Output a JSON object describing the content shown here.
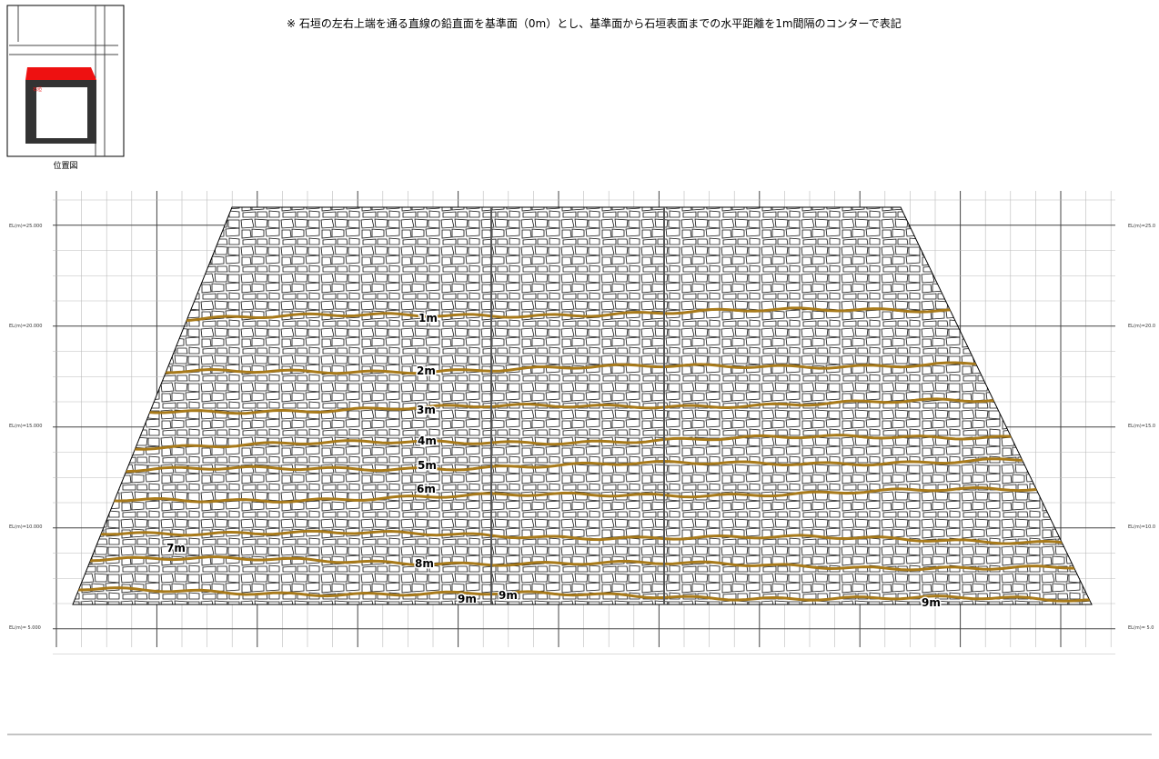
{
  "header": {
    "note": "※ 石垣の左右上端を通る直線の鉛直面を基準面（0m）とし、基準面から石垣表面までの水平距離を1m間隔のコンターで表記"
  },
  "location_map": {
    "caption": "位置図",
    "label": "石垣"
  },
  "elevation_labels_left": [
    "EL(m)=25.000",
    "EL(m)=20.000",
    "EL(m)=15.000",
    "EL(m)=10.000",
    "EL(m)= 5.000"
  ],
  "elevation_labels_right": [
    "EL(m)=25.0",
    "EL(m)=20.0",
    "EL(m)=15.0",
    "EL(m)=10.0",
    "EL(m)= 5.0"
  ],
  "contour_labels": [
    "1m",
    "2m",
    "3m",
    "4m",
    "5m",
    "6m",
    "7m",
    "8m",
    "9m",
    "9m",
    "9m"
  ]
}
